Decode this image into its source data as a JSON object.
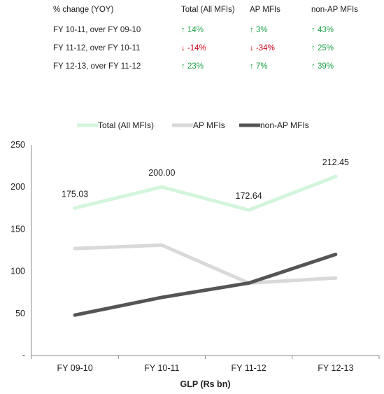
{
  "table": {
    "headers": [
      "% change (YOY)",
      "Total (All MFIs)",
      "AP MFIs",
      "non-AP MFIs"
    ],
    "rows": [
      {
        "label": "FY 10-11, over FY 09-10",
        "cells": [
          {
            "text": "↑ 14%",
            "dir": "up"
          },
          {
            "text": "↑ 3%",
            "dir": "up"
          },
          {
            "text": "↑ 43%",
            "dir": "up"
          }
        ]
      },
      {
        "label": "FY 11-12, over FY 10-11",
        "cells": [
          {
            "text": "↓ -14%",
            "dir": "down"
          },
          {
            "text": "↓ -34%",
            "dir": "down"
          },
          {
            "text": "↑ 25%",
            "dir": "up"
          }
        ]
      },
      {
        "label": "FY 12-13, over FY 11-12",
        "cells": [
          {
            "text": "↑ 23%",
            "dir": "up"
          },
          {
            "text": "↑ 7%",
            "dir": "up"
          },
          {
            "text": "↑ 39%",
            "dir": "up"
          }
        ]
      }
    ],
    "up_color": "#1fa34a",
    "down_color": "#d0021b"
  },
  "chart_data": {
    "type": "line",
    "categories": [
      "FY 09-10",
      "FY 10-11",
      "FY 11-12",
      "FY 12-13"
    ],
    "series": [
      {
        "name": "Total (All MFIs)",
        "values": [
          175.03,
          200.0,
          172.64,
          212.45
        ],
        "color": "#d3f5dc",
        "data_labels": [
          "175.03",
          "200.00",
          "172.64",
          "212.45"
        ]
      },
      {
        "name": "AP MFIs",
        "values": [
          127,
          131,
          86,
          92
        ],
        "color": "#d9d9d9"
      },
      {
        "name": "non-AP MFIs",
        "values": [
          48,
          69,
          86,
          120
        ],
        "color": "#555555"
      }
    ],
    "xlabel": "GLP (Rs bn)",
    "ylabel": "",
    "ylim": [
      0,
      250
    ],
    "yticks": [
      "-",
      "50",
      "100",
      "150",
      "200",
      "250"
    ],
    "legend_position": "top",
    "grid": false
  }
}
